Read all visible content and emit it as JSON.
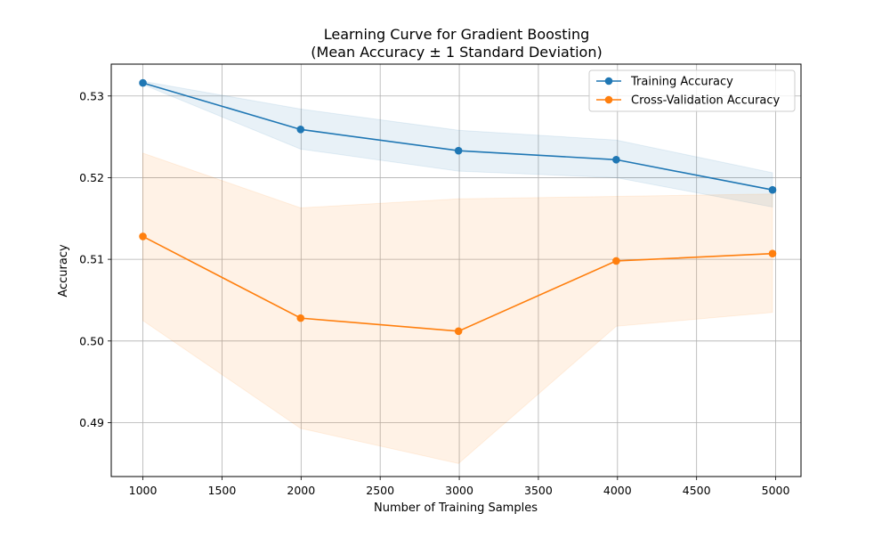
{
  "chart_data": {
    "type": "line",
    "title": "Learning Curve for Gradient Boosting",
    "subtitle": "(Mean Accuracy ± 1 Standard Deviation)",
    "xlabel": "Number of Training Samples",
    "ylabel": "Accuracy",
    "xlim": [
      800,
      5160
    ],
    "ylim": [
      0.4834,
      0.5339
    ],
    "xticks": [
      1000,
      1500,
      2000,
      2500,
      3000,
      3500,
      4000,
      4500,
      5000
    ],
    "yticks": [
      0.49,
      0.5,
      0.51,
      0.52,
      0.53
    ],
    "ytick_labels": [
      "0.49",
      "0.50",
      "0.51",
      "0.52",
      "0.53"
    ],
    "grid": true,
    "legend_position": "top-right",
    "x": [
      1000,
      1997,
      2995,
      3992,
      4980
    ],
    "series": [
      {
        "name": "Training Accuracy",
        "color": "#1f77b4",
        "values": [
          0.5316,
          0.5259,
          0.5233,
          0.5222,
          0.5185
        ],
        "std_lower": [
          0.5314,
          0.5235,
          0.5208,
          0.52,
          0.5164
        ],
        "std_upper": [
          0.5318,
          0.5284,
          0.5258,
          0.5246,
          0.5206
        ]
      },
      {
        "name": "Cross-Validation Accuracy",
        "color": "#ff7f0e",
        "values": [
          0.5128,
          0.5028,
          0.5012,
          0.5098,
          0.5107
        ],
        "std_lower": [
          0.5025,
          0.4893,
          0.485,
          0.5018,
          0.5035
        ],
        "std_upper": [
          0.523,
          0.5163,
          0.5174,
          0.5177,
          0.518
        ]
      }
    ]
  }
}
